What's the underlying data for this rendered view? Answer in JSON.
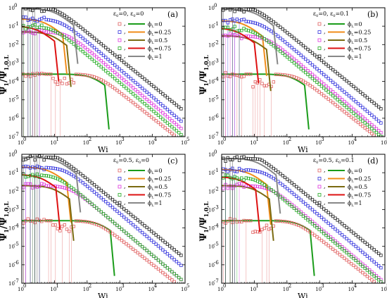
{
  "figure": {
    "ylabel_main": "Ψ",
    "ylabel_sub": "1",
    "ylabel_den": "/Ψ",
    "ylabel_den_sub": "1,0,L",
    "xlabel": "Wi"
  },
  "legend": {
    "entries": [
      {
        "label": "ϕ",
        "sub": "L",
        "value": "=0",
        "color": "#1a9c1a",
        "marker_color": "#e06060"
      },
      {
        "label": "ϕ",
        "sub": "L",
        "value": "=0.25",
        "color": "#f08c1a",
        "marker_color": "#3333dd"
      },
      {
        "label": "ϕ",
        "sub": "L",
        "value": "=0.5",
        "color": "#7a6a10",
        "marker_color": "#dd33dd"
      },
      {
        "label": "ϕ",
        "sub": "L",
        "value": "=0.75",
        "color": "#dd1111",
        "marker_color": "#22aa22"
      },
      {
        "label": "ϕ",
        "sub": "L",
        "value": "=1",
        "color": "#888888",
        "marker_color": "#222222"
      }
    ]
  },
  "axis": {
    "x_ticks": [
      "10",
      "10",
      "10",
      "10",
      "10",
      "10"
    ],
    "x_exps": [
      "0",
      "1",
      "2",
      "3",
      "4",
      "5"
    ],
    "y_ticks": [
      "10",
      "10",
      "10",
      "10",
      "10",
      "10",
      "10",
      "10"
    ],
    "y_exps": [
      "0",
      "-1",
      "-2",
      "-3",
      "-4",
      "-5",
      "-6",
      "-7"
    ]
  },
  "chart_data": [
    {
      "type": "scatter",
      "panel": "(a)",
      "params": {
        "e0": "ε",
        "e0_sub": "0",
        "e0_val": "=0, ",
        "v0": "ε",
        "v0_sub": "0",
        "v0_val": "=0"
      },
      "xscale": "log",
      "yscale": "log",
      "xlim": [
        1,
        100000
      ],
      "ylim": [
        1e-07,
        1
      ],
      "xlabel": "Wi",
      "ylabel": "Ψ1/Ψ1,0,L",
      "series": [
        {
          "name": "ϕL=0",
          "plateau": 0.00025,
          "roll": 150,
          "cut": 350
        },
        {
          "name": "ϕL=0.25",
          "plateau": 0.25,
          "roll": 5,
          "cut": 18
        },
        {
          "name": "ϕL=0.5",
          "plateau": 0.05,
          "roll": 8,
          "cut": 25
        },
        {
          "name": "ϕL=0.75",
          "plateau": 0.1,
          "roll": 3,
          "cut": 10
        },
        {
          "name": "ϕL=1",
          "plateau": 0.9,
          "roll": 10,
          "cut": 40
        }
      ]
    },
    {
      "type": "scatter",
      "panel": "(b)",
      "params": {
        "e0": "ε",
        "e0_sub": "0",
        "e0_val": "=0, ",
        "v0": "ε",
        "v0_sub": "0",
        "v0_val": "=0.1"
      },
      "xscale": "log",
      "yscale": "log",
      "xlim": [
        1,
        100000
      ],
      "ylim": [
        1e-07,
        1
      ],
      "xlabel": "Wi",
      "ylabel": "Ψ1/Ψ1,0,L",
      "series": [
        {
          "name": "ϕL=0",
          "plateau": 0.00025,
          "roll": 150,
          "cut": 350
        },
        {
          "name": "ϕL=0.25",
          "plateau": 0.2,
          "roll": 5,
          "cut": 18
        },
        {
          "name": "ϕL=0.5",
          "plateau": 0.03,
          "roll": 8,
          "cut": 25
        },
        {
          "name": "ϕL=0.75",
          "plateau": 0.08,
          "roll": 3,
          "cut": 10
        },
        {
          "name": "ϕL=1",
          "plateau": 0.85,
          "roll": 10,
          "cut": 40
        }
      ]
    },
    {
      "type": "scatter",
      "panel": "(c)",
      "params": {
        "e0": "ε",
        "e0_sub": "0",
        "e0_val": "=0.5, ",
        "v0": "ε",
        "v0_sub": "0",
        "v0_val": "=0"
      },
      "xscale": "log",
      "yscale": "log",
      "xlim": [
        1,
        100000
      ],
      "ylim": [
        1e-07,
        1
      ],
      "xlabel": "Wi",
      "ylabel": "Ψ1/Ψ1,0,L",
      "series": [
        {
          "name": "ϕL=0",
          "plateau": 0.00025,
          "roll": 250,
          "cut": 550
        },
        {
          "name": "ϕL=0.25",
          "plateau": 0.2,
          "roll": 7,
          "cut": 25
        },
        {
          "name": "ϕL=0.5",
          "plateau": 0.02,
          "roll": 10,
          "cut": 30
        },
        {
          "name": "ϕL=0.75",
          "plateau": 0.08,
          "roll": 4,
          "cut": 12
        },
        {
          "name": "ϕL=1",
          "plateau": 0.7,
          "roll": 12,
          "cut": 50
        }
      ]
    },
    {
      "type": "scatter",
      "panel": "(d)",
      "params": {
        "e0": "ε",
        "e0_sub": "0",
        "e0_val": "=0.5, ",
        "v0": "ε",
        "v0_sub": "0",
        "v0_val": "=0.1"
      },
      "xscale": "log",
      "yscale": "log",
      "xlim": [
        1,
        100000
      ],
      "ylim": [
        1e-07,
        1
      ],
      "xlabel": "Wi",
      "ylabel": "Ψ1/Ψ1,0,L",
      "series": [
        {
          "name": "ϕL=0",
          "plateau": 0.00025,
          "roll": 250,
          "cut": 550
        },
        {
          "name": "ϕL=0.25",
          "plateau": 0.15,
          "roll": 7,
          "cut": 25
        },
        {
          "name": "ϕL=0.5",
          "plateau": 0.02,
          "roll": 10,
          "cut": 30
        },
        {
          "name": "ϕL=0.75",
          "plateau": 0.06,
          "roll": 4,
          "cut": 12
        },
        {
          "name": "ϕL=1",
          "plateau": 0.6,
          "roll": 12,
          "cut": 50
        }
      ]
    }
  ]
}
